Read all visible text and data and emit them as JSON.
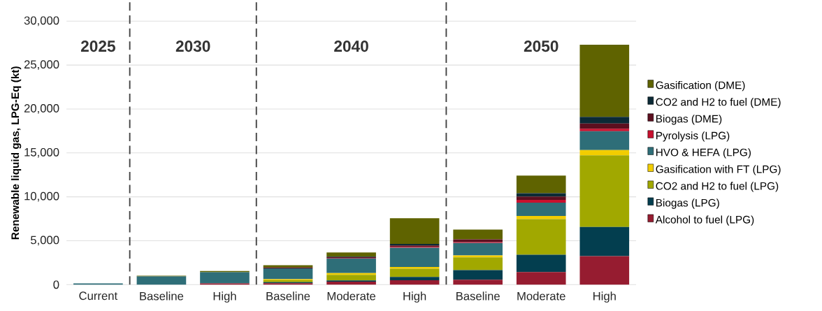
{
  "chart_data": {
    "type": "bar",
    "stacked": true,
    "ylabel": "Renewable liquid gas, LPG-Eq (kt)",
    "categories": [
      "Current",
      "Baseline",
      "High",
      "Baseline",
      "Moderate",
      "High",
      "Baseline",
      "Moderate",
      "High"
    ],
    "series": [
      {
        "name": "Alcohol to fuel (LPG)",
        "color": "#961c30",
        "values": [
          0,
          0,
          140,
          160,
          340,
          510,
          560,
          1440,
          3250
        ]
      },
      {
        "name": "Biogas (LPG)",
        "color": "#033e4f",
        "values": [
          0,
          0,
          0,
          130,
          140,
          370,
          1100,
          1960,
          3320
        ]
      },
      {
        "name": "CO2 and H2 to fuel (LPG)",
        "color": "#a1a800",
        "values": [
          0,
          0,
          0,
          210,
          630,
          940,
          1440,
          4060,
          8160
        ]
      },
      {
        "name": "Gasification with FT (LPG)",
        "color": "#f2cd00",
        "values": [
          0,
          0,
          0,
          110,
          200,
          200,
          220,
          370,
          590
        ]
      },
      {
        "name": "HVO & HEFA (LPG)",
        "color": "#2e6e78",
        "values": [
          150,
          940,
          1280,
          1250,
          1670,
          2180,
          1410,
          1500,
          2150
        ]
      },
      {
        "name": "Pyrolysis (LPG)",
        "color": "#c8102e",
        "values": [
          0,
          0,
          0,
          null,
          60,
          90,
          110,
          320,
          270
        ]
      },
      {
        "name": "Biogas (DME)",
        "color": "#5c0f1f",
        "values": [
          0,
          0,
          0,
          100,
          90,
          170,
          320,
          380,
          610
        ]
      },
      {
        "name": "CO2 and H2 to fuel (DME)",
        "color": "#0b2a36",
        "values": [
          0,
          0,
          0,
          0,
          50,
          170,
          null,
          370,
          750
        ]
      },
      {
        "name": "Gasification (DME)",
        "color": "#5f6300",
        "values": [
          0,
          80,
          140,
          260,
          480,
          2940,
          1100,
          2010,
          8210
        ]
      }
    ],
    "ylim": [
      0,
      30000
    ],
    "yticks": [
      {
        "value": 0,
        "label": "0"
      },
      {
        "value": 5000,
        "label": "5,000"
      },
      {
        "value": 10000,
        "label": "10,000"
      },
      {
        "value": 15000,
        "label": "15,000"
      },
      {
        "value": 20000,
        "label": "20,000"
      },
      {
        "value": 25000,
        "label": "25,000"
      },
      {
        "value": 30000,
        "label": "30,000"
      }
    ],
    "grid": "y",
    "legend": "right",
    "annotations": [
      "2025",
      "2030",
      "2040",
      "2050"
    ]
  }
}
